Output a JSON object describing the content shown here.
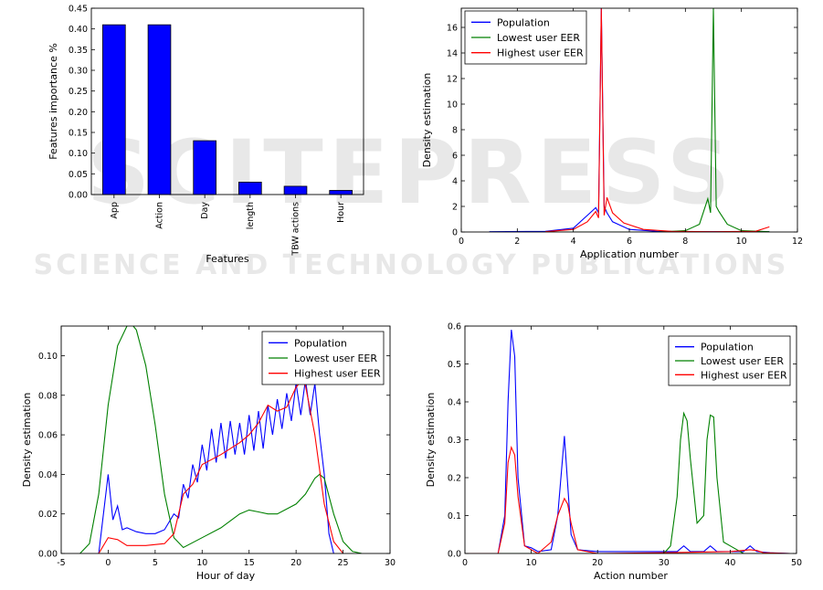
{
  "watermark": {
    "big": "SCITEPRESS",
    "small": "SCIENCE AND TECHNOLOGY PUBLICATIONS"
  },
  "chart_data": [
    {
      "type": "bar",
      "categories": [
        "App",
        "Action",
        "Day",
        "length",
        "TBW actions",
        "Hour"
      ],
      "values": [
        0.41,
        0.41,
        0.13,
        0.03,
        0.02,
        0.01
      ],
      "xlabel": "Features",
      "ylabel": "Features importance %",
      "ylim": [
        0,
        0.45
      ],
      "yticks": [
        0.0,
        0.05,
        0.1,
        0.15,
        0.2,
        0.25,
        0.3,
        0.35,
        0.4,
        0.45
      ],
      "bar_color": "#0000ff"
    },
    {
      "type": "line",
      "xlabel": "Application number",
      "ylabel": "Density estimation",
      "xlim": [
        0,
        12
      ],
      "ylim": [
        0,
        17.5
      ],
      "xticks": [
        0,
        2,
        4,
        6,
        8,
        10,
        12
      ],
      "yticks": [
        0,
        2,
        4,
        6,
        8,
        10,
        12,
        14,
        16
      ],
      "legend": "top-left",
      "series": [
        {
          "name": "Population",
          "color": "#0000ff",
          "x": [
            1,
            3,
            4,
            4.6,
            4.8,
            4.9,
            5.0,
            5.1,
            5.2,
            5.4,
            6,
            7,
            8,
            9,
            10,
            11
          ],
          "y": [
            0.02,
            0.05,
            0.3,
            1.5,
            1.9,
            1.5,
            17.5,
            2.0,
            1.5,
            0.8,
            0.2,
            0.05,
            0.02,
            0.02,
            0.02,
            0.02
          ]
        },
        {
          "name": "Lowest user EER",
          "color": "#008000",
          "x": [
            1,
            7,
            8,
            8.5,
            8.8,
            8.9,
            9.0,
            9.1,
            9.2,
            9.5,
            10,
            11
          ],
          "y": [
            0,
            0,
            0.1,
            0.6,
            2.6,
            1.5,
            17.5,
            2.0,
            1.6,
            0.6,
            0.1,
            0.02
          ]
        },
        {
          "name": "Highest user EER",
          "color": "#ff0000",
          "x": [
            3,
            4,
            4.5,
            4.8,
            4.9,
            5.0,
            5.1,
            5.2,
            5.4,
            5.8,
            6.5,
            7.5,
            9,
            10.5,
            11
          ],
          "y": [
            0.02,
            0.2,
            0.8,
            1.6,
            1.1,
            17.5,
            1.3,
            2.7,
            1.5,
            0.7,
            0.2,
            0.05,
            0.02,
            0.05,
            0.4
          ]
        }
      ]
    },
    {
      "type": "line",
      "xlabel": "Hour of day",
      "ylabel": "Density estimation",
      "xlim": [
        -5,
        30
      ],
      "ylim": [
        0,
        0.115
      ],
      "xticks": [
        -5,
        0,
        5,
        10,
        15,
        20,
        25,
        30
      ],
      "yticks": [
        0.0,
        0.02,
        0.04,
        0.06,
        0.08,
        0.1
      ],
      "legend": "top-right",
      "series": [
        {
          "name": "Population",
          "color": "#0000ff",
          "x": [
            -1,
            0,
            0.5,
            1,
            1.5,
            2,
            3,
            4,
            5,
            6,
            7,
            7.5,
            8,
            8.5,
            9,
            9.5,
            10,
            10.5,
            11,
            11.5,
            12,
            12.5,
            13,
            13.5,
            14,
            14.5,
            15,
            15.5,
            16,
            16.5,
            17,
            17.5,
            18,
            18.5,
            19,
            19.5,
            20,
            20.5,
            21,
            21.5,
            22,
            22.5,
            23,
            23.5,
            24
          ],
          "y": [
            0.0,
            0.04,
            0.017,
            0.024,
            0.012,
            0.013,
            0.011,
            0.01,
            0.01,
            0.012,
            0.02,
            0.018,
            0.035,
            0.028,
            0.045,
            0.036,
            0.055,
            0.042,
            0.063,
            0.046,
            0.066,
            0.048,
            0.067,
            0.05,
            0.066,
            0.05,
            0.07,
            0.052,
            0.072,
            0.053,
            0.075,
            0.06,
            0.078,
            0.063,
            0.081,
            0.067,
            0.086,
            0.07,
            0.088,
            0.07,
            0.086,
            0.06,
            0.04,
            0.01,
            0.0
          ]
        },
        {
          "name": "Lowest user EER",
          "color": "#008000",
          "x": [
            -3,
            -2,
            -1,
            0,
            1,
            2,
            2.5,
            3,
            4,
            5,
            6,
            7,
            8,
            10,
            12,
            14,
            15,
            16,
            17,
            18,
            20,
            21,
            22,
            22.5,
            23,
            24,
            25,
            26,
            27
          ],
          "y": [
            0.0,
            0.005,
            0.03,
            0.075,
            0.105,
            0.115,
            0.116,
            0.113,
            0.095,
            0.065,
            0.03,
            0.008,
            0.003,
            0.008,
            0.013,
            0.02,
            0.022,
            0.021,
            0.02,
            0.02,
            0.025,
            0.03,
            0.038,
            0.04,
            0.038,
            0.02,
            0.006,
            0.001,
            0.0
          ]
        },
        {
          "name": "Highest user EER",
          "color": "#ff0000",
          "x": [
            -1,
            0,
            1,
            2,
            4,
            6,
            7,
            8,
            9,
            10,
            12,
            14,
            15,
            16,
            17,
            18,
            19,
            20,
            20.5,
            21,
            22,
            23,
            24,
            25
          ],
          "y": [
            0.0,
            0.008,
            0.007,
            0.004,
            0.004,
            0.005,
            0.01,
            0.03,
            0.035,
            0.045,
            0.05,
            0.056,
            0.06,
            0.066,
            0.075,
            0.072,
            0.074,
            0.084,
            0.087,
            0.085,
            0.06,
            0.025,
            0.006,
            0.0
          ]
        }
      ]
    },
    {
      "type": "line",
      "xlabel": "Action number",
      "ylabel": "Density estimation",
      "xlim": [
        0,
        50
      ],
      "ylim": [
        0,
        0.6
      ],
      "xticks": [
        0,
        10,
        20,
        30,
        40,
        50
      ],
      "yticks": [
        0.0,
        0.1,
        0.2,
        0.3,
        0.4,
        0.5,
        0.6
      ],
      "legend": "top-right",
      "series": [
        {
          "name": "Population",
          "color": "#0000ff",
          "x": [
            0,
            5,
            6,
            6.5,
            7,
            7.5,
            8,
            9,
            10,
            11,
            13,
            14,
            15,
            16,
            17,
            20,
            28,
            32,
            33,
            34,
            36,
            37,
            38,
            42,
            43,
            44,
            46,
            49
          ],
          "y": [
            0.0,
            0.0,
            0.1,
            0.4,
            0.59,
            0.52,
            0.2,
            0.02,
            0.015,
            0.005,
            0.01,
            0.1,
            0.31,
            0.05,
            0.01,
            0.005,
            0.005,
            0.005,
            0.02,
            0.005,
            0.005,
            0.02,
            0.005,
            0.005,
            0.02,
            0.005,
            0.002,
            0.0
          ]
        },
        {
          "name": "Lowest user EER",
          "color": "#008000",
          "x": [
            0,
            20,
            30,
            31,
            32,
            32.5,
            33,
            33.5,
            34,
            35,
            36,
            36.5,
            37,
            37.5,
            38,
            39,
            40,
            42,
            44,
            45,
            49
          ],
          "y": [
            0.0,
            0.0,
            0.0,
            0.02,
            0.15,
            0.3,
            0.37,
            0.35,
            0.25,
            0.08,
            0.1,
            0.3,
            0.365,
            0.36,
            0.2,
            0.03,
            0.02,
            0.0,
            0.0,
            0.0,
            0.0
          ]
        },
        {
          "name": "Highest user EER",
          "color": "#ff0000",
          "x": [
            0,
            5,
            6,
            6.5,
            7,
            7.5,
            8,
            9,
            11,
            13,
            14,
            15,
            15.5,
            16,
            17,
            20,
            30,
            40,
            43,
            44,
            45,
            49
          ],
          "y": [
            0.0,
            0.0,
            0.08,
            0.24,
            0.28,
            0.26,
            0.15,
            0.02,
            0.0,
            0.03,
            0.1,
            0.145,
            0.13,
            0.08,
            0.01,
            0.0,
            0.002,
            0.005,
            0.01,
            0.008,
            0.002,
            0.0
          ]
        }
      ]
    }
  ]
}
